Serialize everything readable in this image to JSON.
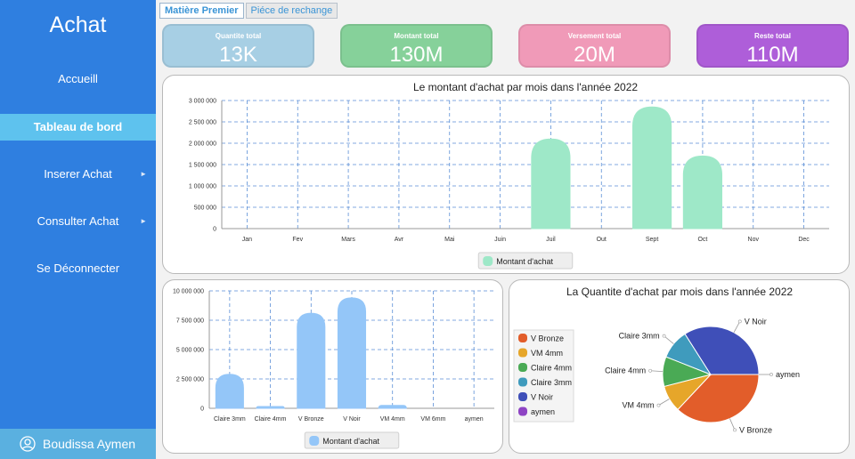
{
  "sidebar": {
    "title": "Achat",
    "items": [
      {
        "label": "Accueill"
      },
      {
        "label": "Tableau de bord"
      },
      {
        "label": "Inserer Achat",
        "arrow": "►"
      },
      {
        "label": "Consulter Achat",
        "arrow": "►"
      },
      {
        "label": "Se Déconnecter"
      }
    ],
    "user_name": "Boudissa Aymen"
  },
  "tabs": [
    {
      "label": "Matière Premier"
    },
    {
      "label": "Piéce de rechange"
    }
  ],
  "cards": [
    {
      "label": "Quantite total",
      "value": "13K",
      "color": "#a7cfe4"
    },
    {
      "label": "Montant total",
      "value": "130M",
      "color": "#86d19a"
    },
    {
      "label": "Versement total",
      "value": "20M",
      "color": "#f09ab8"
    },
    {
      "label": "Reste total",
      "value": "110M",
      "color": "#ae5ed9"
    }
  ],
  "chart_data": [
    {
      "type": "bar",
      "title": "Le montant d'achat par mois dans l'année 2022",
      "categories": [
        "Jan",
        "Fev",
        "Mars",
        "Avr",
        "Mai",
        "Juin",
        "Juil",
        "Out",
        "Sept",
        "Oct",
        "Nov",
        "Dec"
      ],
      "series": [
        {
          "name": "Montant d'achat",
          "values": [
            0,
            0,
            0,
            0,
            0,
            0,
            2100000,
            0,
            2850000,
            1700000,
            0,
            0
          ]
        }
      ],
      "y_ticks": [
        "0",
        "500 000",
        "1 000 000",
        "1 500 000",
        "2 000 000",
        "2 500 000",
        "3 000 000"
      ],
      "ylim": [
        0,
        3000000
      ],
      "grid": true,
      "legend": "bottom",
      "color": "#9ee8c8"
    },
    {
      "type": "bar",
      "title": "",
      "categories": [
        "Claire 3mm",
        "Claire 4mm",
        "V Bronze",
        "V Noir",
        "VM 4mm",
        "VM 6mm",
        "aymen"
      ],
      "series": [
        {
          "name": "Montant d'achat",
          "values": [
            2900000,
            150000,
            8100000,
            9400000,
            250000,
            0,
            0
          ]
        }
      ],
      "y_ticks": [
        "0",
        "2 500 000",
        "5 000 000",
        "7 500 000",
        "10 000 000"
      ],
      "ylim": [
        0,
        10000000
      ],
      "grid": true,
      "legend": "bottom",
      "color": "#94c6f8"
    },
    {
      "type": "pie",
      "title": "La Quantite d'achat par mois dans l'année 2022",
      "slices": [
        {
          "label": "V Bronze",
          "value": 37,
          "color": "#e25d2a"
        },
        {
          "label": "VM 4mm",
          "value": 9,
          "color": "#e6a62a"
        },
        {
          "label": "Claire 4mm",
          "value": 10,
          "color": "#4aaa55"
        },
        {
          "label": "Claire 3mm",
          "value": 10,
          "color": "#3f9bbd"
        },
        {
          "label": "V Noir",
          "value": 34,
          "color": "#3f4fb8"
        },
        {
          "label": "aymen",
          "value": 0,
          "color": "#8e44c4"
        }
      ],
      "legend": "left"
    }
  ]
}
